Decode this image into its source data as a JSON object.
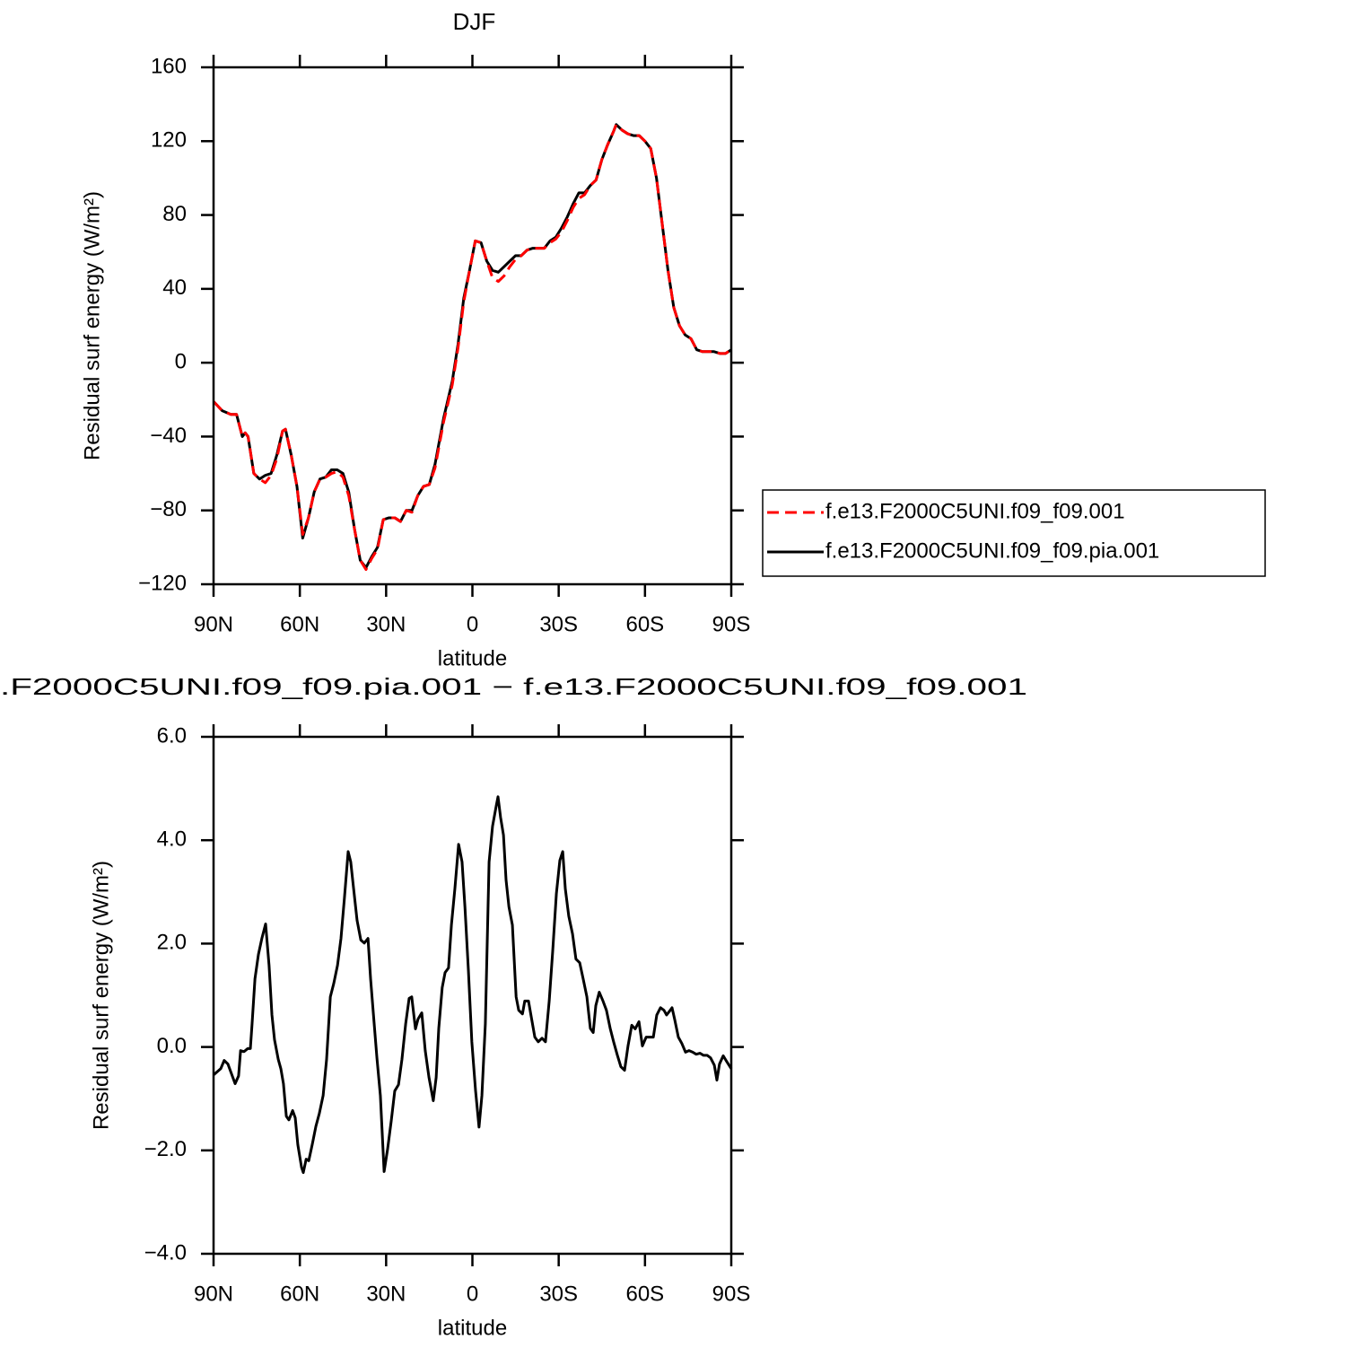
{
  "chart_data": [
    {
      "type": "line",
      "title": "DJF",
      "xlabel": "latitude",
      "ylabel": "Residual surf energy (W/m²)",
      "xlim": [
        90,
        -90
      ],
      "xticks": [
        {
          "value": 90,
          "label": "90N"
        },
        {
          "value": 60,
          "label": "60N"
        },
        {
          "value": 30,
          "label": "30N"
        },
        0,
        {
          "value": -30,
          "label": "30S"
        },
        {
          "value": -60,
          "label": "60S"
        },
        {
          "value": -90,
          "label": "90S"
        }
      ],
      "ylim": [
        -120,
        160
      ],
      "yticks": [
        {
          "value": -120,
          "label": "−120"
        },
        {
          "value": -80,
          "label": "−80"
        },
        {
          "value": -40,
          "label": "−40"
        },
        0,
        40,
        80,
        120,
        160
      ],
      "legend": "right",
      "x": [
        90,
        87,
        84,
        82,
        80,
        79,
        78,
        76,
        74,
        72,
        70,
        68,
        66,
        65,
        63,
        61,
        59,
        57,
        55,
        53,
        51,
        49,
        47,
        45,
        43,
        41,
        39,
        37,
        35,
        33,
        31,
        29,
        27,
        25,
        23,
        21,
        19,
        17,
        15,
        13,
        10,
        7,
        5,
        3,
        1,
        -1,
        -3,
        -5,
        -7,
        -9,
        -11,
        -13,
        -15,
        -17,
        -19,
        -21,
        -23,
        -25,
        -27,
        -29,
        -31,
        -33,
        -35,
        -37,
        -39,
        -41,
        -43,
        -45,
        -47,
        -49,
        -50,
        -52,
        -54,
        -56,
        -58,
        -60,
        -62,
        -64,
        -66,
        -68,
        -70,
        -72,
        -74,
        -76,
        -78,
        -80,
        -82,
        -84,
        -86,
        -88,
        -90
      ],
      "series": [
        {
          "name": "f.e13.F2000C5UNI.f09_f09.001",
          "color": "#ff0000",
          "linestyle": "dashed",
          "values": [
            -21,
            -26,
            -28,
            -28,
            -40,
            -38,
            -40,
            -60,
            -63,
            -65,
            -61,
            -52,
            -37,
            -36,
            -50,
            -67,
            -93,
            -84,
            -70,
            -63,
            -62,
            -60,
            -59,
            -62,
            -72,
            -90,
            -107,
            -112,
            -106,
            -101,
            -85,
            -84,
            -84,
            -86,
            -80,
            -81,
            -72,
            -67,
            -66,
            -57,
            -32,
            -12,
            8,
            33,
            50,
            66,
            65,
            55,
            46,
            44,
            47,
            52,
            56,
            58,
            61,
            62,
            62,
            62,
            65,
            67,
            71,
            77,
            84,
            89,
            91,
            96,
            99,
            110,
            118,
            125,
            129,
            126,
            124,
            123,
            123,
            120,
            116,
            100,
            75,
            50,
            30,
            20,
            15,
            13,
            7,
            6,
            6,
            6,
            5,
            5,
            7
          ]
        },
        {
          "name": "f.e13.F2000C5UNI.f09_f09.pia.001",
          "color": "#000000",
          "linestyle": "solid",
          "values": [
            -21,
            -26,
            -28,
            -28,
            -40,
            -38,
            -40,
            -60,
            -63,
            -61,
            -60,
            -50,
            -37,
            -36,
            -50,
            -67,
            -95,
            -84,
            -70,
            -63,
            -62,
            -58,
            -58,
            -60,
            -70,
            -90,
            -107,
            -111,
            -105,
            -100,
            -85,
            -84,
            -84,
            -86,
            -80,
            -80,
            -72,
            -67,
            -66,
            -55,
            -30,
            -10,
            10,
            35,
            50,
            66,
            65,
            55,
            50,
            49,
            52,
            55,
            58,
            58,
            61,
            62,
            62,
            62,
            66,
            68,
            73,
            79,
            86,
            92,
            92,
            96,
            99,
            110,
            118,
            125,
            129,
            126,
            124,
            123,
            123,
            120,
            116,
            100,
            75,
            50,
            30,
            20,
            15,
            13,
            7,
            6,
            6,
            6,
            5,
            5,
            7
          ]
        }
      ]
    },
    {
      "type": "line",
      "title": ".F2000C5UNI.f09_f09.pia.001 − f.e13.F2000C5UNI.f09_f09.001",
      "xlabel": "latitude",
      "ylabel": "Residual surf energy (W/m²)",
      "xlim": [
        90,
        -90
      ],
      "xticks": [
        {
          "value": 90,
          "label": "90N"
        },
        {
          "value": 60,
          "label": "60N"
        },
        {
          "value": 30,
          "label": "30N"
        },
        0,
        {
          "value": -30,
          "label": "30S"
        },
        {
          "value": -60,
          "label": "60S"
        },
        {
          "value": -90,
          "label": "90S"
        }
      ],
      "ylim": [
        -4,
        6
      ],
      "yticks": [
        {
          "value": -4,
          "label": "−4.0"
        },
        {
          "value": -2,
          "label": "−2.0"
        },
        {
          "value": 0,
          "label": "0.0"
        },
        {
          "value": 2,
          "label": "2.0"
        },
        {
          "value": 4,
          "label": "4.0"
        },
        {
          "value": 6,
          "label": "6.0"
        }
      ],
      "x": [
        90.0,
        87.5,
        86.3,
        85.0,
        82.5,
        81.3,
        80.6,
        79.4,
        78.1,
        77.2,
        76.6,
        75.6,
        74.4,
        73.2,
        71.9,
        70.7,
        69.7,
        68.8,
        67.5,
        66.6,
        65.7,
        64.7,
        63.8,
        62.5,
        61.6,
        60.7,
        59.4,
        58.8,
        57.8,
        56.9,
        55.7,
        54.4,
        53.2,
        51.9,
        50.7,
        49.4,
        48.2,
        46.9,
        45.7,
        44.5,
        43.2,
        42.3,
        41.3,
        40.1,
        38.8,
        37.6,
        36.3,
        35.4,
        34.4,
        33.2,
        32.0,
        30.7,
        29.5,
        28.2,
        27.0,
        25.7,
        24.5,
        23.2,
        22.0,
        21.1,
        19.8,
        18.9,
        17.6,
        16.4,
        15.1,
        13.6,
        12.6,
        11.7,
        10.5,
        9.5,
        8.3,
        7.3,
        6.1,
        4.8,
        3.6,
        2.6,
        1.4,
        0.2,
        -1.1,
        -2.3,
        -3.3,
        -4.5,
        -5.8,
        -7.0,
        -8.3,
        -8.9,
        -9.8,
        -10.8,
        -11.7,
        -12.7,
        -13.9,
        -15.2,
        -16.1,
        -17.4,
        -18.2,
        -19.5,
        -20.5,
        -21.7,
        -22.9,
        -24.2,
        -25.4,
        -26.7,
        -27.9,
        -29.2,
        -30.4,
        -31.4,
        -32.3,
        -33.5,
        -34.8,
        -36.0,
        -37.3,
        -38.5,
        -39.8,
        -41.0,
        -42.0,
        -42.9,
        -44.1,
        -45.4,
        -46.6,
        -47.9,
        -49.1,
        -50.4,
        -51.6,
        -52.9,
        -54.1,
        -55.4,
        -56.6,
        -57.9,
        -59.1,
        -60.4,
        -61.6,
        -62.9,
        -64.1,
        -65.4,
        -66.6,
        -67.5,
        -68.5,
        -69.4,
        -70.3,
        -71.6,
        -72.8,
        -74.1,
        -75.3,
        -76.6,
        -77.8,
        -79.1,
        -80.3,
        -81.6,
        -82.8,
        -84.1,
        -85.0,
        -85.9,
        -87.2,
        -88.4,
        -90.0
      ],
      "series": [
        {
          "color": "#000000",
          "linestyle": "solid",
          "values": [
            -0.54,
            -0.42,
            -0.26,
            -0.33,
            -0.71,
            -0.56,
            -0.07,
            -0.09,
            -0.03,
            -0.03,
            0.45,
            1.32,
            1.79,
            2.1,
            2.38,
            1.58,
            0.62,
            0.14,
            -0.24,
            -0.42,
            -0.71,
            -1.34,
            -1.41,
            -1.23,
            -1.37,
            -1.89,
            -2.33,
            -2.43,
            -2.17,
            -2.2,
            -1.89,
            -1.53,
            -1.28,
            -0.94,
            -0.24,
            0.97,
            1.23,
            1.58,
            2.1,
            2.88,
            3.78,
            3.58,
            3.06,
            2.45,
            2.07,
            2.01,
            2.1,
            1.32,
            0.62,
            -0.21,
            -0.94,
            -2.41,
            -1.98,
            -1.42,
            -0.85,
            -0.73,
            -0.24,
            0.45,
            0.94,
            0.97,
            0.35,
            0.54,
            0.66,
            -0.07,
            -0.59,
            -1.04,
            -0.59,
            0.36,
            1.15,
            1.44,
            1.53,
            2.36,
            3.06,
            3.92,
            3.58,
            2.71,
            1.49,
            0.1,
            -0.85,
            -1.55,
            -0.94,
            0.45,
            3.58,
            4.27,
            4.67,
            4.84,
            4.44,
            4.1,
            3.23,
            2.71,
            2.36,
            0.97,
            0.71,
            0.64,
            0.89,
            0.89,
            0.57,
            0.19,
            0.1,
            0.17,
            0.1,
            0.89,
            1.84,
            2.97,
            3.61,
            3.78,
            3.06,
            2.53,
            2.19,
            1.7,
            1.63,
            1.32,
            0.97,
            0.36,
            0.28,
            0.8,
            1.06,
            0.89,
            0.71,
            0.36,
            0.1,
            -0.16,
            -0.38,
            -0.45,
            0.02,
            0.42,
            0.35,
            0.49,
            0.02,
            0.19,
            0.19,
            0.19,
            0.62,
            0.76,
            0.71,
            0.62,
            0.69,
            0.76,
            0.54,
            0.19,
            0.07,
            -0.1,
            -0.07,
            -0.1,
            -0.14,
            -0.12,
            -0.16,
            -0.16,
            -0.21,
            -0.35,
            -0.64,
            -0.33,
            -0.17,
            -0.28,
            -0.42
          ]
        }
      ]
    }
  ]
}
